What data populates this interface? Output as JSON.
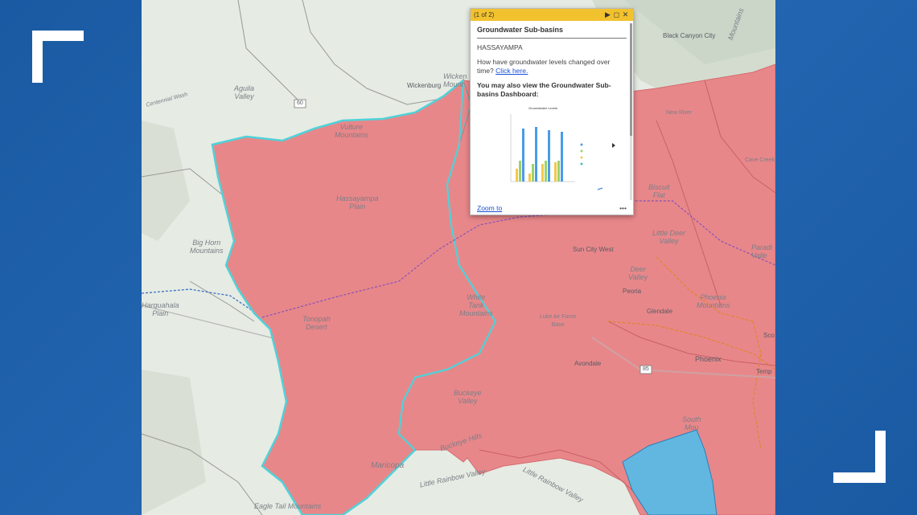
{
  "map": {
    "labels": {
      "aguila_valley": "Aguila\nValley",
      "hassayampa_plain": "Hassayampa\nPlain",
      "big_horn_mountains": "Big Horn\nMountains",
      "harquahala_plain": "Harquahala\nPlain",
      "tonopah_desert": "Tonopah\nDesert",
      "white_tank_mountains": "White\nTank\nMountains",
      "buckeye_valley": "Buckeye\nValley",
      "buckeye_hills": "Buckeye Hills",
      "maricopa": "Maricopa",
      "little_rainbow_valley_1": "Little Rainbow Valley",
      "little_rainbow_valley_2": "Little Rainbow Valley",
      "eagle_tail_mountains": "Eagle Tail Mountains",
      "little_deer_valley": "Little Deer\nValley",
      "deer_valley": "Deer\nValley",
      "biscuit_flat": "Biscuit\nFlat",
      "phoenix_mountains": "Phoenix\nMountains",
      "cave_creek": "Cave Creek",
      "new_river": "New River",
      "paradise": "Paradi\nValle",
      "luke_afb": "Luke Air Force\nBase",
      "hieroglyphic": "Wicken\nMount",
      "vulture": "Vulture\nMountains",
      "south_mountain": "South\nMou",
      "gila_river": "Gila River",
      "estrella": "Sierra Est",
      "mountains_right": "Mountains"
    },
    "cities": {
      "black_canyon_city": "Black Canyon City",
      "wickenburg": "Wickenburg",
      "sun_city_west": "Sun City West",
      "peoria": "Peoria",
      "glendale": "Glendale",
      "phoenix": "Phoenix",
      "avondale": "Avondale",
      "tempe": "Temp",
      "scottsdale": "Sco",
      "cemented_wash": "Centennial Wash"
    },
    "shields": {
      "us60": "60",
      "i85": "85"
    }
  },
  "popup": {
    "pager": "(1 of 2)",
    "title": "Groundwater Sub-basins",
    "basin_name": "HASSAYAMPA",
    "question": "How have groundwater levels changed over time?",
    "link": "Click here.",
    "dashboard_text": "You may also view the Groundwater Sub-basins Dashboard:",
    "zoom": "Zoom to",
    "more": "•••",
    "thumb_title": "Groundwater Levels"
  },
  "colors": {
    "basin_fill": "#e8878a",
    "basin_border": "#4fd2d8",
    "other_basin_fill": "#62b7e0",
    "popup_header": "#f2c22e",
    "frame_blue": "#1d5fa8"
  }
}
